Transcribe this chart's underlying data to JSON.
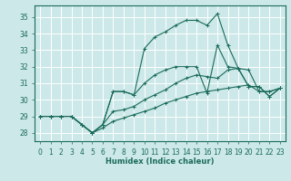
{
  "xlabel": "Humidex (Indice chaleur)",
  "xlim": [
    -0.5,
    23.5
  ],
  "ylim": [
    27.5,
    35.7
  ],
  "xticks": [
    0,
    1,
    2,
    3,
    4,
    5,
    6,
    7,
    8,
    9,
    10,
    11,
    12,
    13,
    14,
    15,
    16,
    17,
    18,
    19,
    20,
    21,
    22,
    23
  ],
  "yticks": [
    28,
    29,
    30,
    31,
    32,
    33,
    34,
    35
  ],
  "bg_color": "#cce8e8",
  "grid_color": "#ffffff",
  "line_color": "#1a6b5a",
  "series": [
    {
      "x": [
        0,
        1,
        2,
        3,
        4,
        5,
        6,
        7,
        8,
        9,
        10,
        11,
        12,
        13,
        14,
        15,
        16,
        17,
        18,
        19,
        20,
        21,
        22,
        23
      ],
      "y": [
        29,
        29,
        29,
        29,
        28.5,
        28,
        28.3,
        28.7,
        28.9,
        29.1,
        29.3,
        29.5,
        29.8,
        30.0,
        30.2,
        30.4,
        30.5,
        30.6,
        30.7,
        30.8,
        30.9,
        30.5,
        30.5,
        30.7
      ]
    },
    {
      "x": [
        0,
        1,
        2,
        3,
        4,
        5,
        6,
        7,
        8,
        9,
        10,
        11,
        12,
        13,
        14,
        15,
        16,
        17,
        18,
        19,
        20,
        21,
        22,
        23
      ],
      "y": [
        29,
        29,
        29,
        29,
        28.5,
        28,
        28.5,
        29.3,
        29.4,
        29.6,
        30.0,
        30.3,
        30.6,
        31.0,
        31.3,
        31.5,
        31.4,
        31.3,
        31.8,
        31.9,
        31.8,
        30.5,
        30.5,
        30.7
      ]
    },
    {
      "x": [
        0,
        1,
        2,
        3,
        4,
        5,
        6,
        7,
        8,
        9,
        10,
        11,
        12,
        13,
        14,
        15,
        16,
        17,
        18,
        19,
        20,
        21,
        22,
        23
      ],
      "y": [
        29,
        29,
        29,
        29,
        28.5,
        28,
        28.5,
        30.5,
        30.5,
        30.3,
        31.0,
        31.5,
        31.8,
        32.0,
        32.0,
        32.0,
        30.4,
        33.3,
        32.0,
        31.9,
        30.8,
        30.8,
        30.2,
        30.7
      ]
    },
    {
      "x": [
        0,
        1,
        2,
        3,
        4,
        5,
        6,
        7,
        8,
        9,
        10,
        11,
        12,
        13,
        14,
        15,
        16,
        17,
        18,
        19,
        20,
        21,
        22,
        23
      ],
      "y": [
        29,
        29,
        29,
        29,
        28.5,
        28,
        28.5,
        30.5,
        30.5,
        30.3,
        33.1,
        33.8,
        34.1,
        34.5,
        34.8,
        34.8,
        34.5,
        35.2,
        33.3,
        31.9,
        30.8,
        30.8,
        30.2,
        30.7
      ]
    }
  ]
}
